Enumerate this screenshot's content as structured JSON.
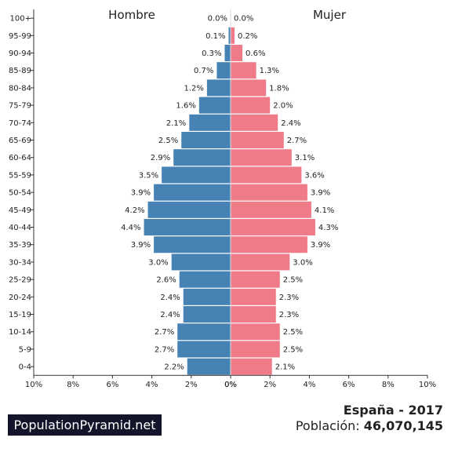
{
  "chart_data": {
    "type": "bar",
    "orientation": "horizontal-pyramid",
    "categories": [
      "100+",
      "95-99",
      "90-94",
      "85-89",
      "80-84",
      "75-79",
      "70-74",
      "65-69",
      "60-64",
      "55-59",
      "50-54",
      "45-49",
      "40-44",
      "35-39",
      "30-34",
      "25-29",
      "20-24",
      "15-19",
      "10-14",
      "5-9",
      "0-4"
    ],
    "series": [
      {
        "name": "Hombre",
        "color": "#4682b4",
        "values": [
          0.0,
          0.1,
          0.3,
          0.7,
          1.2,
          1.6,
          2.1,
          2.5,
          2.9,
          3.5,
          3.9,
          4.2,
          4.4,
          3.9,
          3.0,
          2.6,
          2.4,
          2.4,
          2.7,
          2.7,
          2.2
        ],
        "labels": [
          "0.0%",
          "0.1%",
          "0.3%",
          "0.7%",
          "1.2%",
          "1.6%",
          "2.1%",
          "2.5%",
          "2.9%",
          "3.5%",
          "3.9%",
          "4.2%",
          "4.4%",
          "3.9%",
          "3.0%",
          "2.6%",
          "2.4%",
          "2.4%",
          "2.7%",
          "2.7%",
          "2.2%"
        ]
      },
      {
        "name": "Mujer",
        "color": "#f07b88",
        "values": [
          0.0,
          0.2,
          0.6,
          1.3,
          1.8,
          2.0,
          2.4,
          2.7,
          3.1,
          3.6,
          3.9,
          4.1,
          4.3,
          3.9,
          3.0,
          2.5,
          2.3,
          2.3,
          2.5,
          2.5,
          2.1
        ],
        "labels": [
          "0.0%",
          "0.2%",
          "0.6%",
          "1.3%",
          "1.8%",
          "2.0%",
          "2.4%",
          "2.7%",
          "3.1%",
          "3.6%",
          "3.9%",
          "4.1%",
          "4.3%",
          "3.9%",
          "3.0%",
          "2.5%",
          "2.3%",
          "2.3%",
          "2.5%",
          "2.5%",
          "2.1%"
        ]
      }
    ],
    "xlim": [
      -10,
      10
    ],
    "x_ticks_left": [
      "10%",
      "8%",
      "6%",
      "4%",
      "2%",
      "0%"
    ],
    "x_ticks_right": [
      "0%",
      "2%",
      "4%",
      "6%",
      "8%",
      "10%"
    ],
    "legend_left": "Hombre",
    "legend_right": "Mujer"
  },
  "footer": {
    "brand": "PopulationPyramid.net",
    "country_year": "España - 2017",
    "population_label": "Población:",
    "population_value": "46,070,145"
  }
}
